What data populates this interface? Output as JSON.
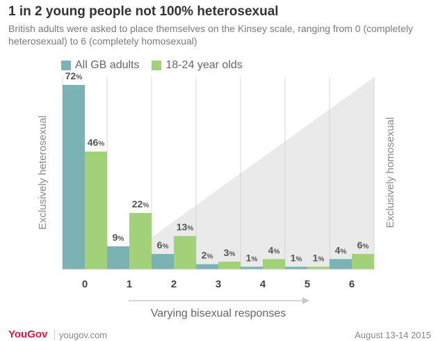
{
  "chart_data": {
    "type": "bar",
    "title": "1 in 2 young people not 100% heterosexual",
    "subtitle": "British adults were asked to place themselves on the Kinsey scale, ranging from 0 (completely heterosexual) to 6 (completely homosexual)",
    "categories": [
      "0",
      "1",
      "2",
      "3",
      "4",
      "5",
      "6"
    ],
    "series": [
      {
        "name": "All GB adults",
        "color": "#7bb3b5",
        "values": [
          72,
          9,
          6,
          2,
          1,
          1,
          4
        ]
      },
      {
        "name": "18-24 year olds",
        "color": "#a3d17a",
        "values": [
          46,
          22,
          13,
          3,
          4,
          1,
          6
        ]
      }
    ],
    "ylim": [
      0,
      75
    ],
    "left_label": "Exclusively heterosexual",
    "right_label": "Exclusively homosexual",
    "xlabel": "Varying bisexual responses",
    "value_suffix": "%"
  },
  "footer": {
    "brand": "YouGov",
    "site": "yougov.com",
    "date": "August 13-14 2015"
  }
}
